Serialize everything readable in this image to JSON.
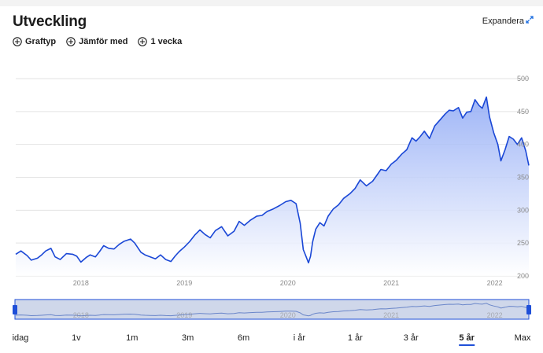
{
  "header": {
    "title": "Utveckling",
    "expand_label": "Expandera",
    "expand_icon": "diagonal-arrows-icon"
  },
  "controls": [
    {
      "label": "Graftyp",
      "icon": "plus-circle-icon"
    },
    {
      "label": "Jämför med",
      "icon": "plus-circle-icon"
    },
    {
      "label": "1 vecka",
      "icon": "plus-circle-icon"
    }
  ],
  "periods": [
    "idag",
    "1v",
    "1m",
    "3m",
    "6m",
    "i år",
    "1 år",
    "3 år",
    "5 år",
    "Max"
  ],
  "active_period": "5 år",
  "colors": {
    "line": "#1a47d6",
    "area_top": "#8fa9f5",
    "area_bottom": "#ffffff",
    "grid": "#e3e3e3",
    "navigator_fill": "#cfd7ea",
    "navigator_border": "#1f4fd8",
    "navigator_handle": "#1f4fd8"
  },
  "chart_data": {
    "type": "area",
    "title": "",
    "xlabel": "",
    "ylabel": "",
    "ylim": [
      200,
      500
    ],
    "y_ticks": [
      200,
      250,
      300,
      350,
      400,
      450,
      500
    ],
    "x_ticks": [
      {
        "label": "2018",
        "x": 2018.0
      },
      {
        "label": "2019",
        "x": 2019.0
      },
      {
        "label": "2020",
        "x": 2020.0
      },
      {
        "label": "2021",
        "x": 2021.0
      },
      {
        "label": "2022",
        "x": 2022.0
      }
    ],
    "xlim": [
      2017.37,
      2022.33
    ],
    "grid": true,
    "legend": "none",
    "series": [
      {
        "x": [
          2017.37,
          2017.42,
          2017.48,
          2017.52,
          2017.58,
          2017.62,
          2017.66,
          2017.71,
          2017.75,
          2017.8,
          2017.86,
          2017.92,
          2017.96,
          2018.0,
          2018.05,
          2018.09,
          2018.14,
          2018.18,
          2018.22,
          2018.27,
          2018.32,
          2018.37,
          2018.42,
          2018.48,
          2018.52,
          2018.58,
          2018.62,
          2018.67,
          2018.72,
          2018.77,
          2018.82,
          2018.87,
          2018.91,
          2018.95,
          2019.0,
          2019.05,
          2019.1,
          2019.15,
          2019.2,
          2019.25,
          2019.3,
          2019.36,
          2019.42,
          2019.48,
          2019.53,
          2019.58,
          2019.64,
          2019.7,
          2019.75,
          2019.8,
          2019.86,
          2019.92,
          2019.98,
          2020.03,
          2020.08,
          2020.12,
          2020.15,
          2020.17,
          2020.2,
          2020.22,
          2020.24,
          2020.27,
          2020.31,
          2020.35,
          2020.39,
          2020.44,
          2020.49,
          2020.54,
          2020.6,
          2020.65,
          2020.7,
          2020.76,
          2020.82,
          2020.86,
          2020.9,
          2020.95,
          2021.0,
          2021.05,
          2021.1,
          2021.15,
          2021.2,
          2021.24,
          2021.28,
          2021.32,
          2021.37,
          2021.42,
          2021.47,
          2021.52,
          2021.56,
          2021.6,
          2021.65,
          2021.69,
          2021.73,
          2021.77,
          2021.81,
          2021.85,
          2021.88,
          2021.92,
          2021.95,
          2021.99,
          2022.03,
          2022.06,
          2022.1,
          2022.14,
          2022.18,
          2022.22,
          2022.26,
          2022.3,
          2022.33
        ],
        "values": [
          233,
          238,
          231,
          224,
          227,
          232,
          238,
          242,
          229,
          225,
          234,
          233,
          230,
          221,
          228,
          232,
          229,
          237,
          246,
          242,
          241,
          248,
          253,
          256,
          250,
          236,
          232,
          229,
          226,
          232,
          225,
          222,
          230,
          237,
          244,
          252,
          262,
          270,
          263,
          258,
          269,
          275,
          261,
          268,
          283,
          277,
          285,
          291,
          292,
          298,
          302,
          307,
          313,
          315,
          310,
          280,
          240,
          232,
          220,
          230,
          252,
          271,
          281,
          276,
          291,
          302,
          308,
          318,
          325,
          333,
          346,
          337,
          344,
          353,
          362,
          360,
          370,
          376,
          385,
          392,
          410,
          405,
          412,
          420,
          409,
          428,
          437,
          446,
          452,
          451,
          456,
          440,
          449,
          450,
          468,
          459,
          455,
          472,
          442,
          418,
          400,
          375,
          392,
          412,
          408,
          400,
          410,
          390,
          368
        ]
      }
    ]
  }
}
